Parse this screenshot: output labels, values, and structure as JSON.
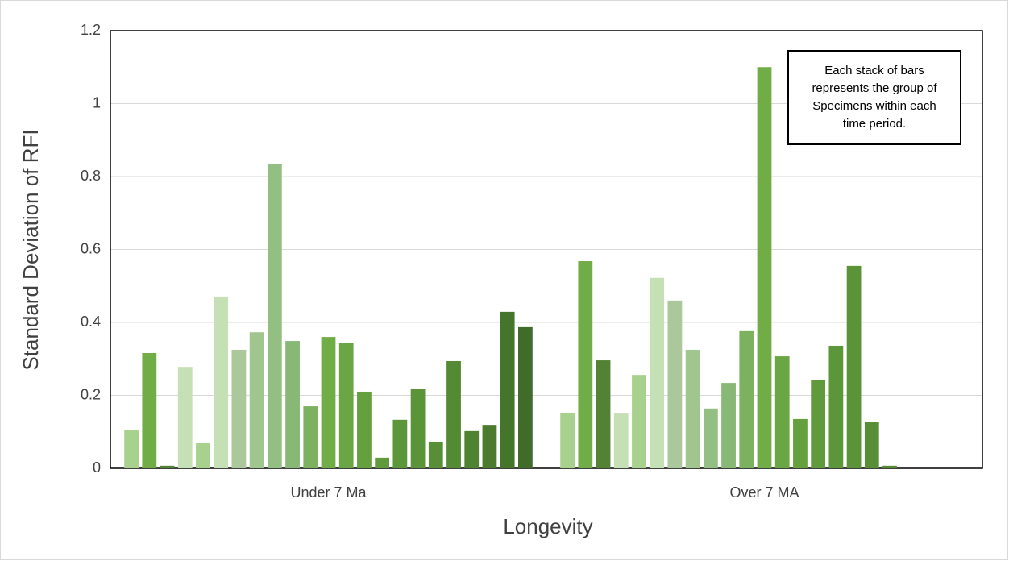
{
  "chart_data": {
    "type": "bar",
    "y_label": "Standard Deviation of RFI",
    "x_label": "Longevity",
    "annotation": "Each stack of bars represents the group of Specimens within each time period.",
    "categories": [
      "Under 7 Ma",
      "Over 7 MA"
    ],
    "ylim": [
      0,
      1.2
    ],
    "yticks": [
      0,
      0.2,
      0.4,
      0.6,
      0.8,
      1,
      1.2
    ],
    "grid": true,
    "series": [
      {
        "color": "#a9d18e",
        "values": [
          0.106,
          0.152
        ]
      },
      {
        "color": "#70ad47",
        "values": [
          0.316,
          0.568
        ]
      },
      {
        "color": "#548235",
        "values": [
          0.007,
          0.296
        ]
      },
      {
        "color": "#c5e0b4",
        "values": [
          0.278,
          0.15
        ]
      },
      {
        "color": "#a9d18e",
        "values": [
          0.069,
          0.256
        ]
      },
      {
        "color": "#c5e0b4",
        "values": [
          0.471,
          0.522
        ]
      },
      {
        "color": "#abc79b",
        "values": [
          0.325,
          0.46
        ]
      },
      {
        "color": "#a1c58f",
        "values": [
          0.373,
          0.325
        ]
      },
      {
        "color": "#93bf82",
        "values": [
          0.835,
          0.164
        ]
      },
      {
        "color": "#87b875",
        "values": [
          0.349,
          0.234
        ]
      },
      {
        "color": "#7cb25f",
        "values": [
          0.17,
          0.376
        ]
      },
      {
        "color": "#70ad47",
        "values": [
          0.36,
          1.1
        ]
      },
      {
        "color": "#6aa643",
        "values": [
          0.343,
          0.307
        ]
      },
      {
        "color": "#65a03f",
        "values": [
          0.21,
          0.135
        ]
      },
      {
        "color": "#5f9b3c",
        "values": [
          0.029,
          0.243
        ]
      },
      {
        "color": "#5b9639",
        "values": [
          0.133,
          0.336
        ]
      },
      {
        "color": "#5a9338",
        "values": [
          0.217,
          0.555
        ]
      },
      {
        "color": "#588f36",
        "values": [
          0.073,
          0.128
        ]
      },
      {
        "color": "#548a34",
        "values": [
          0.294,
          0.007
        ]
      },
      {
        "color": "#4f8231",
        "values": [
          0.102,
          null
        ]
      },
      {
        "color": "#4a7b2e",
        "values": [
          0.119,
          null
        ]
      },
      {
        "color": "#45742b",
        "values": [
          0.429,
          null
        ]
      },
      {
        "color": "#406b28",
        "values": [
          0.387,
          null
        ]
      }
    ]
  }
}
